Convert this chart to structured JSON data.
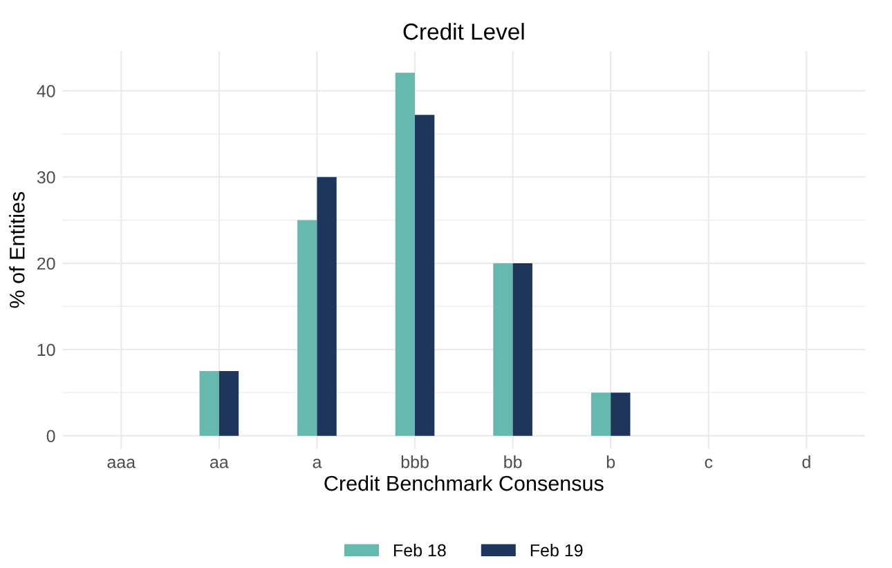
{
  "chart_data": {
    "type": "bar",
    "title": "Credit Level",
    "xlabel": "Credit Benchmark Consensus",
    "ylabel": "% of Entities",
    "categories": [
      "aaa",
      "aa",
      "a",
      "bbb",
      "bb",
      "b",
      "c",
      "d"
    ],
    "series": [
      {
        "name": "Feb 18",
        "color": "#66b9ae",
        "values": [
          0,
          7.5,
          25,
          42.1,
          20,
          5,
          0,
          0
        ]
      },
      {
        "name": "Feb 19",
        "color": "#1f365c",
        "values": [
          0,
          7.5,
          30,
          37.2,
          20,
          5,
          0,
          0
        ]
      }
    ],
    "ylim": [
      -1.5,
      44.6
    ],
    "yticks": [
      0,
      10,
      20,
      30,
      40
    ],
    "grid": true,
    "legend": "bottom"
  }
}
